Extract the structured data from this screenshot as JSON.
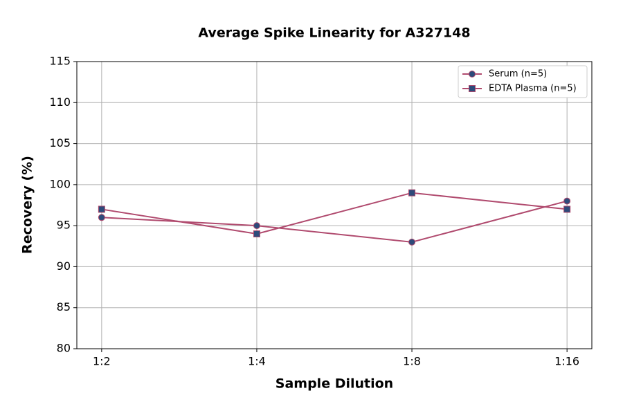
{
  "chart_data": {
    "type": "line",
    "title": "Average Spike Linearity for A327148",
    "x_label": "Sample Dilution",
    "y_label": "Recovery (%)",
    "categories": [
      "1:2",
      "1:4",
      "1:8",
      "1:16"
    ],
    "series": [
      {
        "name": "Serum (n=5)",
        "color": "#b04a6e",
        "marker": "circle",
        "marker_color": "#2e4a7a",
        "values": [
          96,
          95,
          93,
          98
        ]
      },
      {
        "name": "EDTA Plasma (n=5)",
        "color": "#b04a6e",
        "marker": "square",
        "marker_color": "#2e4a7a",
        "values": [
          97,
          94,
          99,
          97
        ]
      }
    ],
    "ylim": [
      80,
      115
    ],
    "yticks": [
      80,
      85,
      90,
      95,
      100,
      105,
      110,
      115
    ],
    "grid": true,
    "legend": "upper right"
  }
}
